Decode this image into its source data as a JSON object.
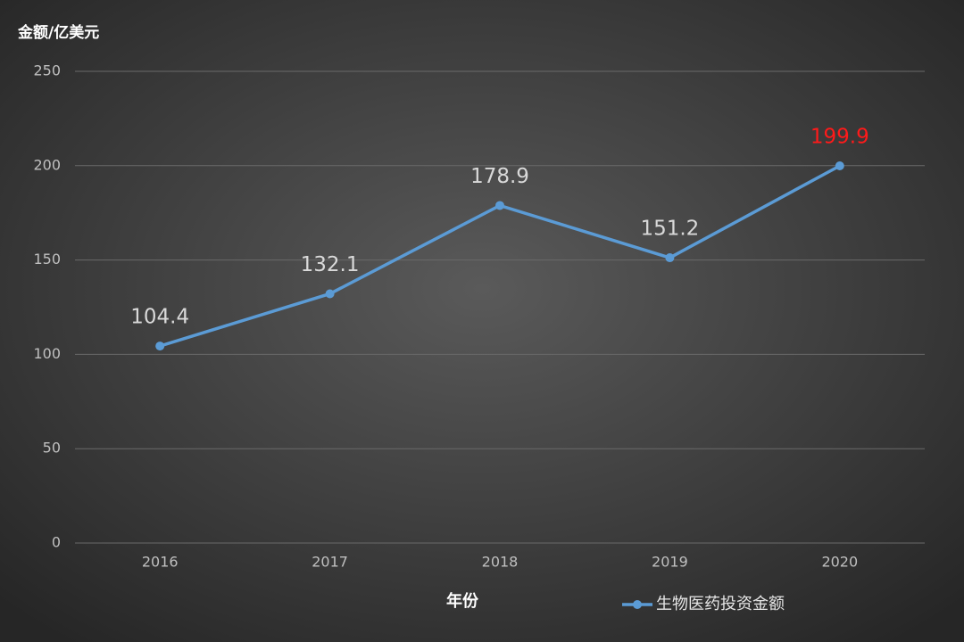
{
  "chart_data": {
    "type": "line",
    "y_axis_label": "金额/亿美元",
    "x_axis_label": "年份",
    "categories": [
      "2016",
      "2017",
      "2018",
      "2019",
      "2020"
    ],
    "series": [
      {
        "name": "生物医药投资金额",
        "color": "#5b9bd5",
        "values": [
          104.4,
          132.1,
          178.9,
          151.2,
          199.9
        ],
        "label_colors": [
          "#d9d9d9",
          "#d9d9d9",
          "#d9d9d9",
          "#d9d9d9",
          "#ff1a1a"
        ]
      }
    ],
    "ylim": [
      0,
      250
    ],
    "yticks": [
      0,
      50,
      100,
      150,
      200,
      250
    ],
    "grid": true,
    "legend": "bottom-right"
  }
}
